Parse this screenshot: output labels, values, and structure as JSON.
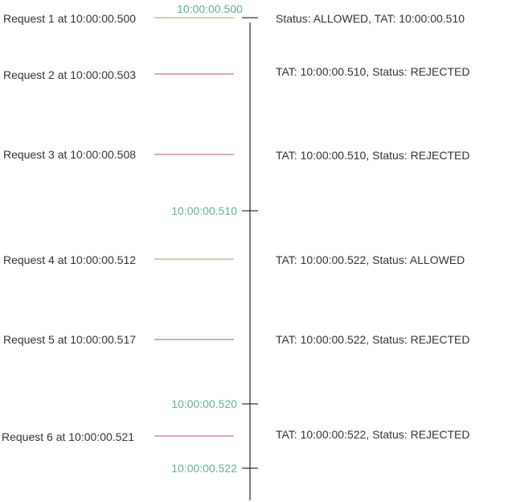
{
  "colors": {
    "timeline": "#000000",
    "allowed": "#82b366",
    "rejected": "#b85450",
    "time_label": "#67ab9f",
    "text": "#333333"
  },
  "requests": [
    {
      "label": "Request 1 at 10:00:00.500",
      "status": "Status: ALLOWED, TAT:  10:00:00.510",
      "result": "allowed"
    },
    {
      "label": "Request 2 at 10:00:00.503",
      "status": "TAT:  10:00:00.510, Status: REJECTED",
      "result": "rejected"
    },
    {
      "label": "Request 3 at 10:00:00.508",
      "status": "TAT:  10:00:00.510, Status: REJECTED",
      "result": "rejected"
    },
    {
      "label": "Request 4 at 10:00:00.512",
      "status": "TAT:  10:00:00.522, Status: ALLOWED",
      "result": "allowed"
    },
    {
      "label": "Request 5 at 10:00:00.517",
      "status": "TAT:  10:00:00.522, Status: REJECTED",
      "result": "rejected"
    },
    {
      "label": "Request 6 at 10:00:00.521",
      "status": "TAT:  10:00:00:522, Status: REJECTED",
      "result": "rejected"
    }
  ],
  "time_marks": [
    {
      "label": "10:00:00.500"
    },
    {
      "label": "10:00:00.510"
    },
    {
      "label": "10:00:00.520"
    },
    {
      "label": "10:00:00.522"
    }
  ]
}
